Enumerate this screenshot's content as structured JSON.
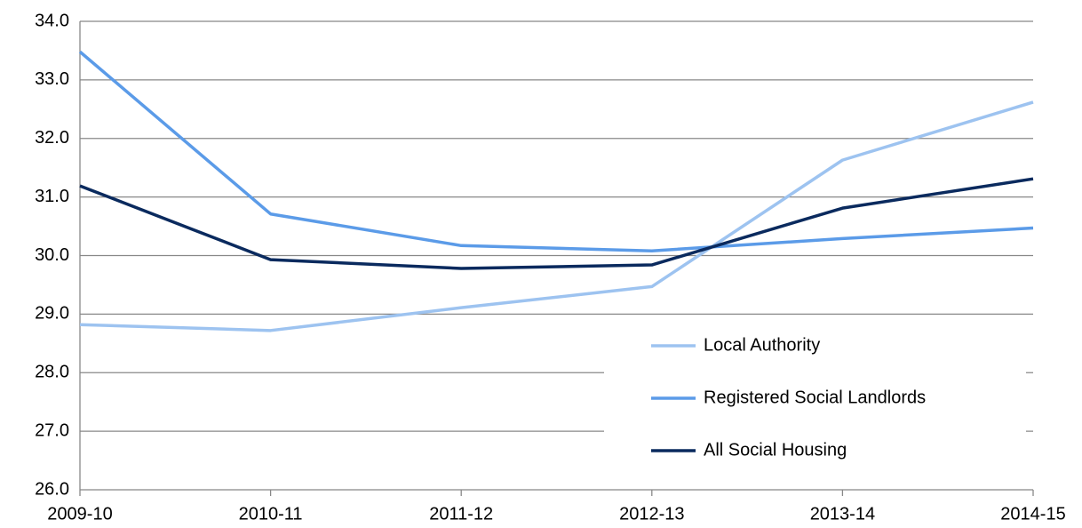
{
  "chart_data": {
    "type": "line",
    "categories": [
      "2009-10",
      "2010-11",
      "2011-12",
      "2012-13",
      "2013-14",
      "2014-15"
    ],
    "series": [
      {
        "name": "Local Authority",
        "color": "#9dc3f0",
        "values": [
          28.82,
          28.72,
          29.11,
          29.47,
          31.63,
          32.62
        ]
      },
      {
        "name": "Registered Social Landlords",
        "color": "#5b9be8",
        "values": [
          33.48,
          30.71,
          30.17,
          30.08,
          30.29,
          30.47
        ]
      },
      {
        "name": "All Social Housing",
        "color": "#0a2a5e",
        "values": [
          31.19,
          29.93,
          29.78,
          29.84,
          30.81,
          31.31
        ]
      }
    ],
    "ylim": [
      26,
      34
    ],
    "yticks": [
      {
        "value": 26,
        "label": "26.0"
      },
      {
        "value": 27,
        "label": "27.0"
      },
      {
        "value": 28,
        "label": "28.0"
      },
      {
        "value": 29,
        "label": "29.0"
      },
      {
        "value": 30,
        "label": "30.0"
      },
      {
        "value": 31,
        "label": "31.0"
      },
      {
        "value": 32,
        "label": "32.0"
      },
      {
        "value": 33,
        "label": "33.0"
      },
      {
        "value": 34,
        "label": "34.0"
      }
    ],
    "grid": true,
    "legend": "lower right"
  }
}
